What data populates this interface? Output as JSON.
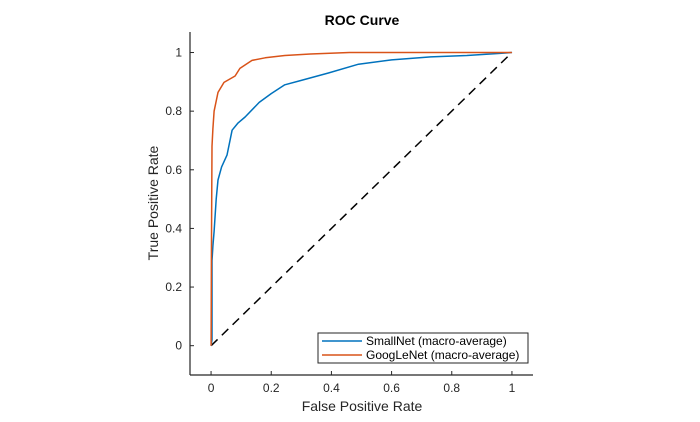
{
  "chart_data": {
    "type": "line",
    "title": "ROC Curve",
    "xlabel": "False Positive Rate",
    "ylabel": "True Positive Rate",
    "xlim": [
      -0.07,
      1.07
    ],
    "ylim": [
      -0.1,
      1.07
    ],
    "xticks": [
      0,
      0.2,
      0.4,
      0.6,
      0.8,
      1
    ],
    "xtick_labels": [
      "0",
      "0.2",
      "0.4",
      "0.6",
      "0.8",
      "1"
    ],
    "yticks": [
      0,
      0.2,
      0.4,
      0.6,
      0.8,
      1
    ],
    "ytick_labels": [
      "0",
      "0.2",
      "0.4",
      "0.6",
      "0.8",
      "1"
    ],
    "grid": false,
    "legend_position": "bottom-right",
    "series": [
      {
        "name": "SmallNet (macro-average)",
        "color": "#0072BD",
        "x": [
          0,
          0.003,
          0.003,
          0.006,
          0.01,
          0.017,
          0.023,
          0.035,
          0.053,
          0.07,
          0.09,
          0.113,
          0.16,
          0.2,
          0.245,
          0.3,
          0.39,
          0.49,
          0.6,
          0.73,
          0.85,
          0.96,
          1
        ],
        "y": [
          0,
          0.02,
          0.29,
          0.34,
          0.39,
          0.5,
          0.565,
          0.61,
          0.65,
          0.735,
          0.76,
          0.78,
          0.83,
          0.86,
          0.89,
          0.905,
          0.93,
          0.96,
          0.975,
          0.985,
          0.99,
          0.997,
          1
        ]
      },
      {
        "name": "GoogLeNet (macro-average)",
        "color": "#D95319",
        "x": [
          0,
          0.001,
          0.003,
          0.006,
          0.01,
          0.023,
          0.043,
          0.08,
          0.096,
          0.136,
          0.18,
          0.245,
          0.33,
          0.46,
          0.7,
          1
        ],
        "y": [
          0,
          0.3,
          0.68,
          0.74,
          0.8,
          0.864,
          0.898,
          0.92,
          0.946,
          0.973,
          0.982,
          0.99,
          0.995,
          1,
          1,
          1
        ]
      },
      {
        "name": "Chance",
        "color": "#000000",
        "style": "dashed",
        "x": [
          0,
          1
        ],
        "y": [
          0,
          1
        ]
      }
    ]
  }
}
